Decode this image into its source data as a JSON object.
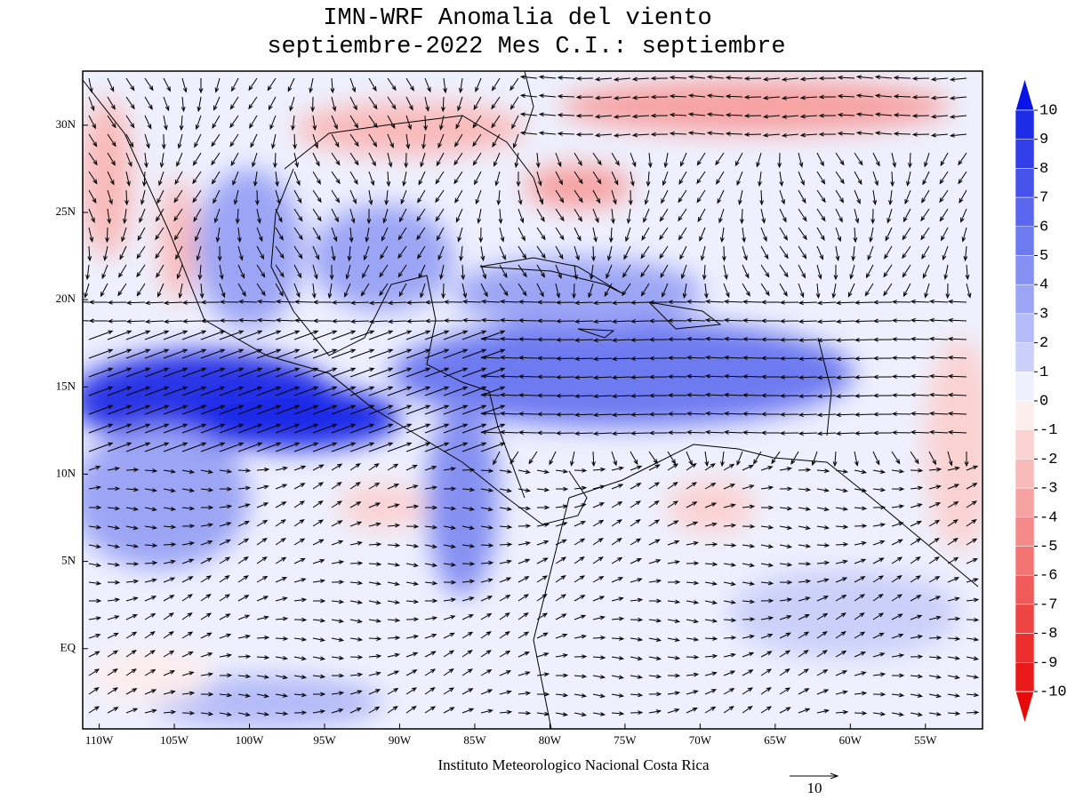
{
  "map": {
    "title": [
      "IMN-WRF Anomalia del viento",
      "septiembre-2022 Mes C.I.: septiembre"
    ],
    "xlim": [
      -111.1,
      -51.2
    ],
    "ylim": [
      -4.6,
      33.1
    ],
    "xticks": [
      {
        "value": -110,
        "label": "110W"
      },
      {
        "value": -105,
        "label": "105W"
      },
      {
        "value": -100,
        "label": "100W"
      },
      {
        "value": -95,
        "label": "95W"
      },
      {
        "value": -90,
        "label": "90W"
      },
      {
        "value": -85,
        "label": "85W"
      },
      {
        "value": -80,
        "label": "80W"
      },
      {
        "value": -75,
        "label": "75W"
      },
      {
        "value": -70,
        "label": "70W"
      },
      {
        "value": -65,
        "label": "65W"
      },
      {
        "value": -60,
        "label": "60W"
      },
      {
        "value": -55,
        "label": "55W"
      }
    ],
    "yticks": [
      {
        "value": 30,
        "label": "30N"
      },
      {
        "value": 25,
        "label": "25N"
      },
      {
        "value": 20,
        "label": "20N"
      },
      {
        "value": 15,
        "label": "15N"
      },
      {
        "value": 10,
        "label": "10N"
      },
      {
        "value": 5,
        "label": "5N"
      },
      {
        "value": 0,
        "label": "EQ"
      }
    ],
    "footer": "Instituto Meteorologico Nacional Costa Rica",
    "reference_vector": 10,
    "colorbar": {
      "levels": [
        10,
        9,
        8,
        7,
        6,
        5,
        4,
        3,
        2,
        1,
        0,
        -1,
        -2,
        -3,
        -4,
        -5,
        -6,
        -7,
        -8,
        -9,
        -10
      ],
      "colors": [
        "#0a14e6",
        "#1e2ce8",
        "#323ee8",
        "#4652ea",
        "#5a66ee",
        "#6e7af0",
        "#8590f2",
        "#9ca5f5",
        "#b4bbf8",
        "#cbd0fa",
        "#eef0fe",
        "#fdeeee",
        "#fbd2d2",
        "#f9baba",
        "#f7a2a2",
        "#f58a8a",
        "#f37272",
        "#f15a5a",
        "#ef4444",
        "#ed2e2e",
        "#eb1a1a",
        "#e80a0a"
      ]
    }
  }
}
